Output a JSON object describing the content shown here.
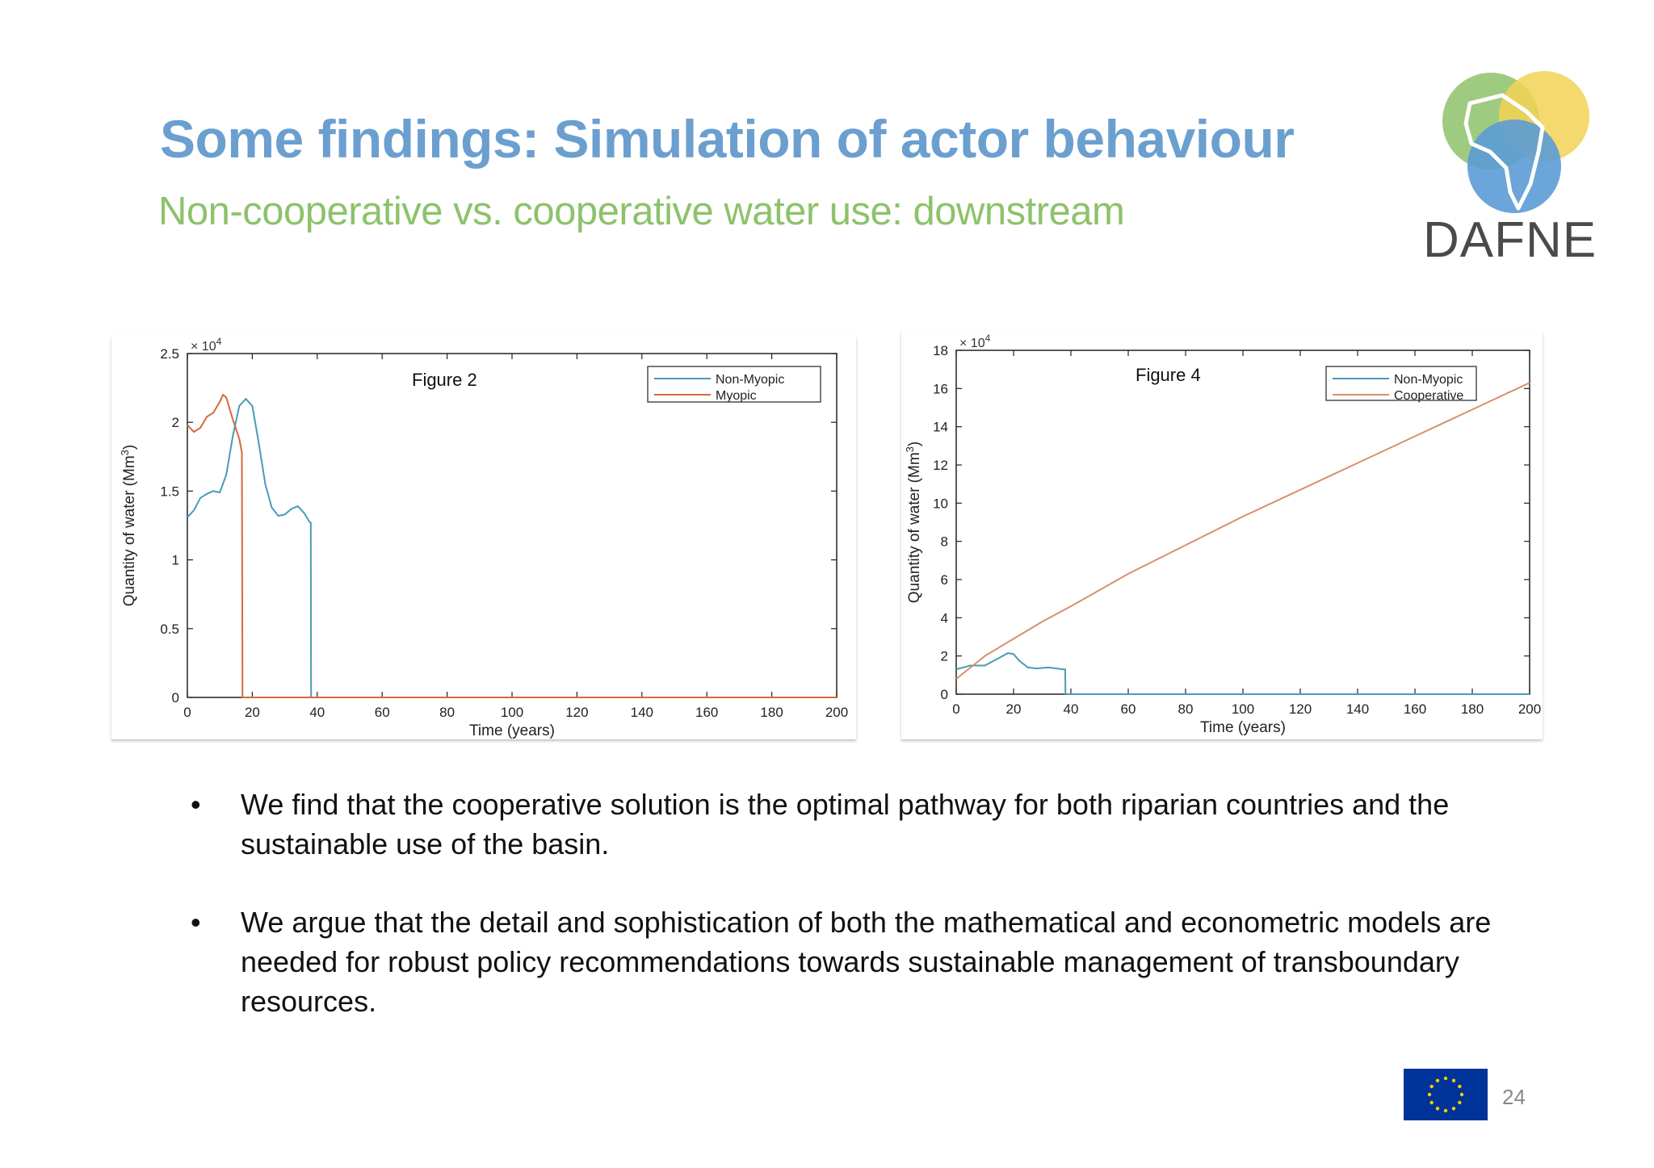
{
  "slide": {
    "title": "Some findings: Simulation of actor behaviour",
    "subtitle": "Non-cooperative vs. cooperative water use: downstream",
    "logo_text": "DAFNE",
    "page_number": "24",
    "bullets": [
      "We find that the cooperative solution is the optimal pathway for both riparian countries and the sustainable use of the basin.",
      "We argue that the detail and sophistication of both the mathematical and econometric models are needed for robust policy recommendations towards sustainable management of transboundary resources."
    ],
    "colors": {
      "title": "#6b9fcf",
      "subtitle": "#8dc26a",
      "logo_green": "#8dc26a",
      "logo_yellow": "#f2d255",
      "logo_blue": "#5b9bd5",
      "eu_blue": "#003399",
      "eu_star": "#ffcc00"
    }
  },
  "chart_data": [
    {
      "type": "line",
      "annotation": "Figure 2",
      "xlabel": "Time (years)",
      "ylabel": "Quantity of water (Mm",
      "ylabel_sup": "3",
      "ylabel_end": ")",
      "exponent_label": "× 10",
      "exponent_power": "4",
      "xlim": [
        0,
        200
      ],
      "ylim": [
        0,
        2.5
      ],
      "xticks": [
        0,
        20,
        40,
        60,
        80,
        100,
        120,
        140,
        160,
        180,
        200
      ],
      "yticks": [
        0,
        0.5,
        1,
        1.5,
        2,
        2.5
      ],
      "ytick_labels": [
        "0",
        "0.5",
        "1",
        "1.5",
        "2",
        "2.5"
      ],
      "legend_position": "top-right",
      "series": [
        {
          "name": "Non-Myopic",
          "color": "#4a9ab8",
          "x": [
            0,
            2,
            4,
            6,
            8,
            10,
            12,
            14,
            16,
            18,
            20,
            22,
            24,
            26,
            28,
            30,
            32,
            34,
            36,
            37.5,
            38,
            38.1,
            40,
            200
          ],
          "y": [
            1.31,
            1.36,
            1.45,
            1.48,
            1.5,
            1.49,
            1.62,
            1.9,
            2.12,
            2.17,
            2.12,
            1.85,
            1.55,
            1.38,
            1.32,
            1.33,
            1.37,
            1.39,
            1.34,
            1.28,
            1.27,
            0,
            0,
            0
          ]
        },
        {
          "name": "Myopic",
          "color": "#d36a3e",
          "x": [
            0,
            2,
            4,
            6,
            8,
            10,
            11,
            12,
            14,
            16,
            16.8,
            17,
            18,
            200
          ],
          "y": [
            1.98,
            1.93,
            1.96,
            2.04,
            2.07,
            2.15,
            2.2,
            2.18,
            2.02,
            1.88,
            1.78,
            0,
            0,
            0
          ]
        }
      ]
    },
    {
      "type": "line",
      "annotation": "Figure 4",
      "xlabel": "Time (years)",
      "ylabel": "Quantity of water (Mm",
      "ylabel_sup": "3",
      "ylabel_end": ")",
      "exponent_label": "× 10",
      "exponent_power": "4",
      "xlim": [
        0,
        200
      ],
      "ylim": [
        0,
        18
      ],
      "xticks": [
        0,
        20,
        40,
        60,
        80,
        100,
        120,
        140,
        160,
        180,
        200
      ],
      "yticks": [
        0,
        2,
        4,
        6,
        8,
        10,
        12,
        14,
        16,
        18
      ],
      "ytick_labels": [
        "0",
        "2",
        "4",
        "6",
        "8",
        "10",
        "12",
        "14",
        "16",
        "18"
      ],
      "legend_position": "top-right",
      "series": [
        {
          "name": "Non-Myopic",
          "color": "#4a9ab8",
          "x": [
            0,
            5,
            10,
            15,
            18,
            20,
            22,
            25,
            28,
            32,
            35,
            37,
            38,
            38.1,
            40,
            200
          ],
          "y": [
            1.3,
            1.5,
            1.5,
            1.9,
            2.15,
            2.1,
            1.75,
            1.4,
            1.35,
            1.4,
            1.35,
            1.3,
            1.3,
            0,
            0,
            0
          ]
        },
        {
          "name": "Cooperative",
          "color": "#d8906a",
          "x": [
            0,
            5,
            10,
            20,
            30,
            40,
            60,
            80,
            100,
            120,
            140,
            160,
            180,
            200
          ],
          "y": [
            0.8,
            1.4,
            2.0,
            2.9,
            3.8,
            4.6,
            6.3,
            7.8,
            9.3,
            10.7,
            12.1,
            13.5,
            14.9,
            16.3
          ]
        }
      ]
    }
  ]
}
